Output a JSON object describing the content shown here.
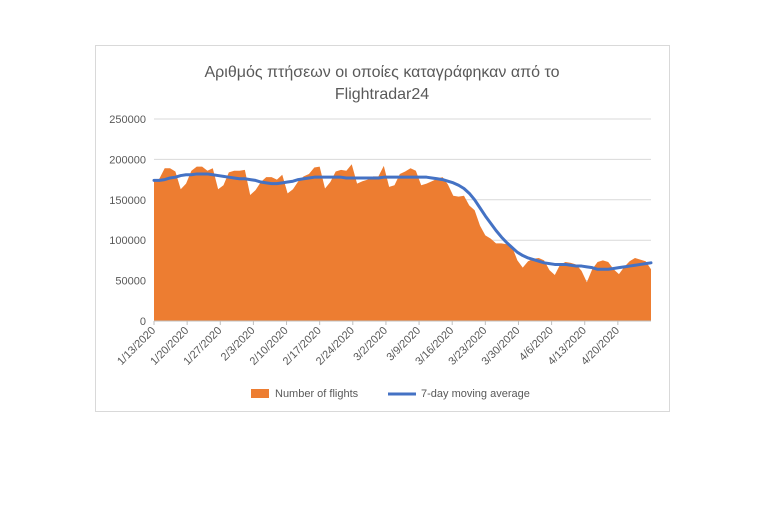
{
  "chart_data": {
    "type": "area",
    "title_lines": [
      "Αριθμός πτήσεων οι οποίες καταγράφηκαν από το",
      "Flightradar24"
    ],
    "xlabel": "",
    "ylabel": "",
    "ylim": [
      0,
      250000
    ],
    "yticks": [
      0,
      50000,
      100000,
      150000,
      200000,
      250000
    ],
    "ytick_labels": [
      "0",
      "50000",
      "100000",
      "150000",
      "200000",
      "250000"
    ],
    "x_start": "2020-01-13",
    "x_end": "2020-04-27",
    "xtick_labels": [
      "1/13/2020",
      "1/20/2020",
      "1/27/2020",
      "2/3/2020",
      "2/10/2020",
      "2/17/2020",
      "2/24/2020",
      "3/2/2020",
      "3/9/2020",
      "3/16/2020",
      "3/23/2020",
      "3/30/2020",
      "4/6/2020",
      "4/13/2020",
      "4/20/2020"
    ],
    "grid": true,
    "legend_position": "bottom",
    "colors": {
      "area": "#ED7D31",
      "line": "#4472C4",
      "grid": "#d9d9d9",
      "axis": "#bfbfbf"
    },
    "series": [
      {
        "name": "Number of flights",
        "kind": "area",
        "values": [
          174000,
          176000,
          189000,
          189000,
          185000,
          163000,
          170000,
          186000,
          191000,
          191000,
          186000,
          189000,
          163000,
          168000,
          184000,
          186000,
          186000,
          187000,
          156000,
          162000,
          172000,
          178000,
          178000,
          175000,
          181000,
          158000,
          163000,
          173000,
          179000,
          182000,
          190000,
          191000,
          164000,
          172000,
          185000,
          187000,
          186000,
          194000,
          170000,
          173000,
          175000,
          179000,
          179000,
          192000,
          166000,
          168000,
          182000,
          185000,
          189000,
          186000,
          168000,
          170000,
          173000,
          176000,
          178000,
          169000,
          155000,
          154000,
          155000,
          143000,
          137000,
          118000,
          106000,
          102000,
          96000,
          96000,
          95000,
          92000,
          75000,
          66000,
          74000,
          77000,
          78000,
          75000,
          63000,
          57000,
          70000,
          73000,
          72000,
          70000,
          62000,
          48000,
          64000,
          73000,
          75000,
          73000,
          64000,
          58000,
          67000,
          74000,
          78000,
          76000,
          74000,
          64000
        ]
      },
      {
        "name": "7-day moving average",
        "kind": "line",
        "values": [
          174000,
          174000,
          175000,
          177000,
          178000,
          180000,
          181000,
          181000,
          182000,
          182000,
          182000,
          181000,
          180000,
          179000,
          178000,
          177000,
          176000,
          176000,
          175000,
          174000,
          172000,
          171000,
          170000,
          170000,
          171000,
          172000,
          173000,
          175000,
          176000,
          177000,
          178000,
          178000,
          178000,
          178000,
          178000,
          178000,
          177000,
          177000,
          177000,
          177000,
          177000,
          177000,
          177000,
          178000,
          178000,
          178000,
          178000,
          178000,
          178000,
          178000,
          178000,
          178000,
          177000,
          176000,
          175000,
          173000,
          171000,
          168000,
          164000,
          158000,
          150000,
          140000,
          130000,
          121000,
          112000,
          104000,
          97000,
          91000,
          85000,
          81000,
          78000,
          76000,
          74000,
          72000,
          71000,
          70000,
          70000,
          70000,
          69000,
          68000,
          68000,
          67000,
          66000,
          64000,
          64000,
          64000,
          65000,
          66000,
          67000,
          68000,
          69000,
          70000,
          71000,
          72000
        ]
      }
    ]
  },
  "legend": {
    "items": [
      {
        "label": "Number of flights",
        "color": "#ED7D31",
        "kind": "area"
      },
      {
        "label": "7-day moving average",
        "color": "#4472C4",
        "kind": "line"
      }
    ]
  }
}
